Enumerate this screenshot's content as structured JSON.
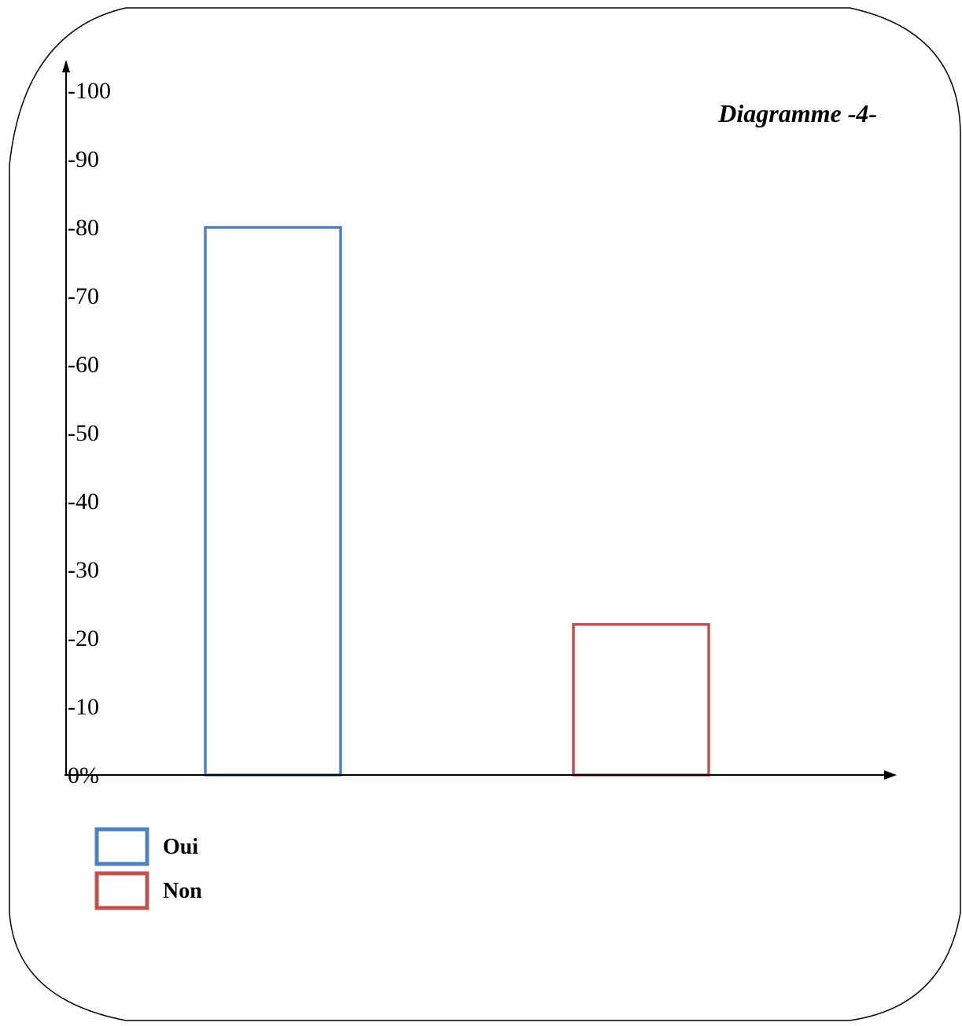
{
  "chart_data": {
    "type": "bar",
    "title": "Diagramme -4-",
    "categories": [
      "Oui",
      "Non"
    ],
    "values": [
      80,
      22
    ],
    "ylim": [
      0,
      100
    ],
    "yticks": [
      "0%",
      "-10",
      "-20",
      "-30",
      "-40",
      "-50",
      "-60",
      "-70",
      "-80",
      "-90",
      "-100"
    ],
    "ytick_values": [
      0,
      10,
      20,
      30,
      40,
      50,
      60,
      70,
      80,
      90,
      100
    ],
    "bar_style": "outline",
    "grid": false,
    "legend": {
      "placement": "bottom-left",
      "entries": [
        {
          "label": "Oui",
          "color": "#4F81BD"
        },
        {
          "label": "Non",
          "color": "#C0504D"
        }
      ]
    },
    "colors": [
      "#4F81BD",
      "#C0504D"
    ]
  }
}
